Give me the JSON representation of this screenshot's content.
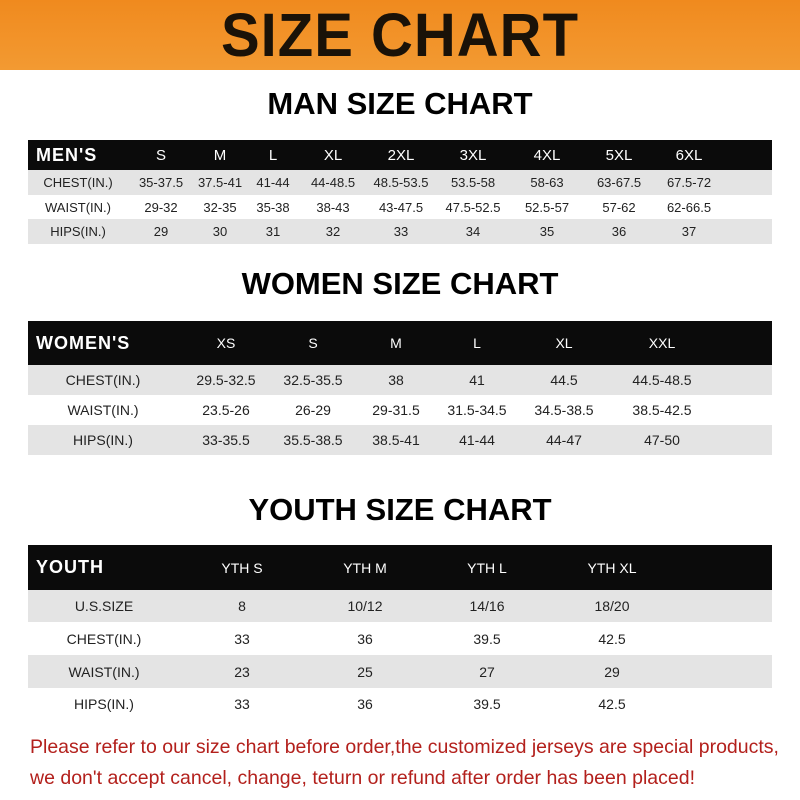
{
  "title": "SIZE CHART",
  "men": {
    "title": "MAN SIZE CHART",
    "header": [
      "MEN'S",
      "S",
      "M",
      "L",
      "XL",
      "2XL",
      "3XL",
      "4XL",
      "5XL",
      "6XL"
    ],
    "rows": [
      [
        "CHEST(IN.)",
        "35-37.5",
        "37.5-41",
        "41-44",
        "44-48.5",
        "48.5-53.5",
        "53.5-58",
        "58-63",
        "63-67.5",
        "67.5-72"
      ],
      [
        "WAIST(IN.)",
        "29-32",
        "32-35",
        "35-38",
        "38-43",
        "43-47.5",
        "47.5-52.5",
        "52.5-57",
        "57-62",
        "62-66.5"
      ],
      [
        "HIPS(IN.)",
        "29",
        "30",
        "31",
        "32",
        "33",
        "34",
        "35",
        "36",
        "37"
      ]
    ]
  },
  "women": {
    "title": "WOMEN SIZE CHART",
    "header": [
      "WOMEN'S",
      "XS",
      "S",
      "M",
      "L",
      "XL",
      "XXL"
    ],
    "rows": [
      [
        "CHEST(IN.)",
        "29.5-32.5",
        "32.5-35.5",
        "38",
        "41",
        "44.5",
        "44.5-48.5"
      ],
      [
        "WAIST(IN.)",
        "23.5-26",
        "26-29",
        "29-31.5",
        "31.5-34.5",
        "34.5-38.5",
        "38.5-42.5"
      ],
      [
        "HIPS(IN.)",
        "33-35.5",
        "35.5-38.5",
        "38.5-41",
        "41-44",
        "44-47",
        "47-50"
      ]
    ]
  },
  "youth": {
    "title": "YOUTH SIZE CHART",
    "header": [
      "YOUTH",
      "YTH S",
      "YTH M",
      "YTH L",
      "YTH XL"
    ],
    "rows": [
      [
        "U.S.SIZE",
        "8",
        "10/12",
        "14/16",
        "18/20"
      ],
      [
        "CHEST(IN.)",
        "33",
        "36",
        "39.5",
        "42.5"
      ],
      [
        "WAIST(IN.)",
        "23",
        "25",
        "27",
        "29"
      ],
      [
        "HIPS(IN.)",
        "33",
        "36",
        "39.5",
        "42.5"
      ]
    ]
  },
  "note": "Please refer to our size chart before order,the customized jerseys are special products, we don't accept cancel, change, teturn or refund after order has been placed!",
  "colors": {
    "banner": "#f08a1e",
    "header": "#0b0b0b",
    "note": "#b3201c"
  }
}
